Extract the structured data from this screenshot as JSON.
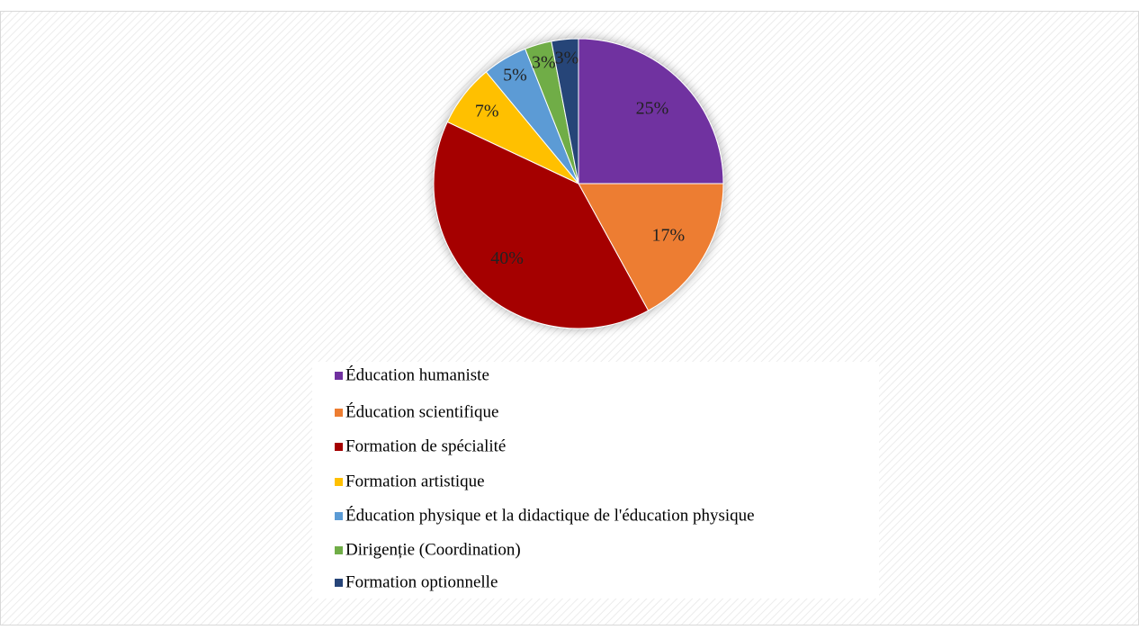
{
  "chart_data": {
    "type": "pie",
    "categories": [
      "Éducation humaniste",
      "Éducation scientifique",
      "Formation de spécialité",
      "Formation artistique",
      "Éducation physique et la didactique de l'éducation physique",
      "Dirigenție (Coordination)",
      "Formation optionnelle"
    ],
    "values": [
      25,
      17,
      40,
      7,
      5,
      3,
      3
    ],
    "value_labels": [
      "25%",
      "17%",
      "40%",
      "7%",
      "5%",
      "3%",
      "3%"
    ],
    "colors": [
      "#7030a0",
      "#ed7d31",
      "#a50000",
      "#ffc000",
      "#5b9bd5",
      "#70ad47",
      "#264478"
    ],
    "legend": "bottom"
  }
}
